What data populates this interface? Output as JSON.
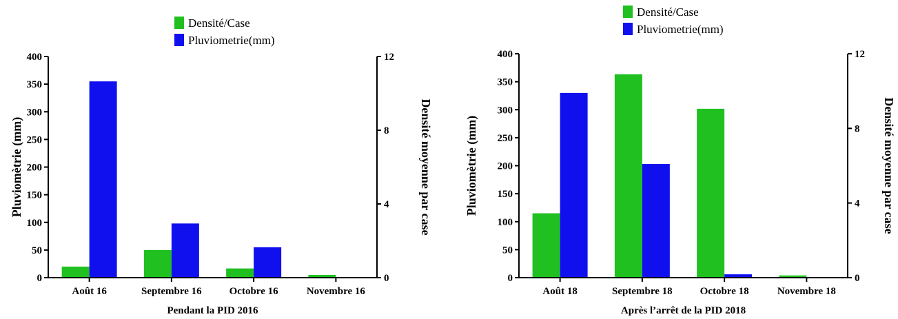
{
  "colors": {
    "densite": "#1fc01f",
    "pluvio": "#1010ee"
  },
  "chart_data": [
    {
      "type": "bar",
      "xlabel": "Pendant la PID 2016",
      "ylabel": "Pluviomètrie (mm)",
      "y2label": "Densité moyenne par case",
      "categories": [
        "Août 16",
        "Septembre 16",
        "Octobre 16",
        "Novembre 16"
      ],
      "ylim": [
        0,
        400
      ],
      "y2lim": [
        0,
        12
      ],
      "yticks": [
        0,
        50,
        100,
        150,
        200,
        250,
        300,
        350,
        400
      ],
      "y2ticks": [
        0,
        4,
        8,
        12
      ],
      "legend": "top-center",
      "series": [
        {
          "name": "Densité/Case",
          "axis": "right",
          "values": [
            0.6,
            1.5,
            0.5,
            0.15
          ]
        },
        {
          "name": "Pluviometrie(mm)",
          "axis": "left",
          "values": [
            355,
            98,
            55,
            0
          ]
        }
      ]
    },
    {
      "type": "bar",
      "xlabel": "Après l’arrêt de la PID 2018",
      "ylabel": "Pluviomètrie (mm)",
      "y2label": "Densité moyenne par case",
      "categories": [
        "Août 18",
        "Septembre 18",
        "Octobre 18",
        "Novembre 18"
      ],
      "ylim": [
        0,
        400
      ],
      "y2lim": [
        0,
        12
      ],
      "yticks": [
        0,
        50,
        100,
        150,
        200,
        250,
        300,
        350,
        400
      ],
      "y2ticks": [
        0,
        4,
        8,
        12
      ],
      "legend": "top-center",
      "series": [
        {
          "name": "Densité/Case",
          "axis": "right",
          "values": [
            3.45,
            10.9,
            9.05,
            0.12
          ]
        },
        {
          "name": "Pluviometrie(mm)",
          "axis": "left",
          "values": [
            330,
            203,
            6,
            0
          ]
        }
      ]
    }
  ]
}
